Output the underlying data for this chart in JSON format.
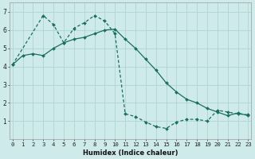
{
  "xlabel": "Humidex (Indice chaleur)",
  "bg_color": "#ceeaea",
  "grid_color": "#aed4d4",
  "line_color": "#1a6e60",
  "line_solid_x": [
    0,
    1,
    2,
    3,
    4,
    5,
    6,
    7,
    8,
    9,
    10,
    11,
    12,
    13,
    14,
    15,
    16,
    17,
    18,
    19,
    20,
    21,
    22,
    23
  ],
  "line_solid_y": [
    4.1,
    4.6,
    4.7,
    4.6,
    5.0,
    5.3,
    5.5,
    5.6,
    5.8,
    6.0,
    6.05,
    5.5,
    5.0,
    4.4,
    3.8,
    3.1,
    2.6,
    2.2,
    2.0,
    1.7,
    1.5,
    1.3,
    1.45,
    1.3
  ],
  "line_dash_x": [
    0,
    3,
    4,
    5,
    6,
    7,
    8,
    9,
    10,
    11,
    12,
    13,
    14,
    15,
    16,
    17,
    18,
    19,
    20,
    21,
    22,
    23
  ],
  "line_dash_y": [
    4.1,
    6.8,
    6.3,
    5.3,
    6.1,
    6.4,
    6.8,
    6.5,
    5.8,
    1.4,
    1.25,
    0.95,
    0.7,
    0.6,
    0.95,
    1.1,
    1.1,
    1.0,
    1.6,
    1.5,
    1.4,
    1.35
  ],
  "xlim": [
    0,
    23
  ],
  "ylim": [
    0,
    7.5
  ],
  "yticks": [
    1,
    2,
    3,
    4,
    5,
    6,
    7
  ],
  "xticks": [
    0,
    1,
    2,
    3,
    4,
    5,
    6,
    7,
    8,
    9,
    10,
    11,
    12,
    13,
    14,
    15,
    16,
    17,
    18,
    19,
    20,
    21,
    22,
    23
  ],
  "xlabel_fontsize": 6.0,
  "tick_fontsize": 5.2
}
